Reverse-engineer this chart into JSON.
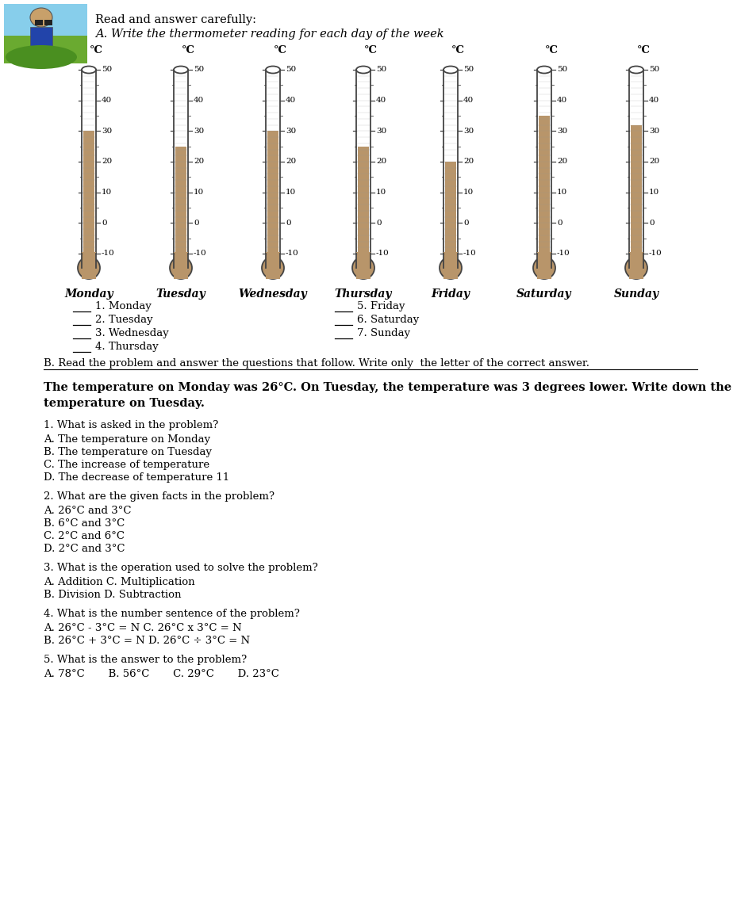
{
  "title_line1": "Read and answer carefully:",
  "title_line2": "A. Write the thermometer reading for each day of the week",
  "days": [
    "Monday",
    "Tuesday",
    "Wednesday",
    "Thursday",
    "Friday",
    "Saturday",
    "Sunday"
  ],
  "thermo_ticks": [
    -10,
    0,
    10,
    20,
    30,
    40,
    50
  ],
  "mercury_levels": [
    30,
    25,
    30,
    25,
    20,
    35,
    32
  ],
  "section_b_intro": "B. Read the problem and answer the questions that follow. Write only  the letter of the correct answer.",
  "problem_line1": "The temperature on Monday was 26°C. On Tuesday, the temperature was 3 degrees lower. Write down the",
  "problem_line2": "temperature on Tuesday.",
  "list_col1": [
    "1. Monday",
    "2. Tuesday",
    "3. Wednesday",
    "4. Thursday"
  ],
  "list_col2": [
    "5. Friday",
    "6. Saturday",
    "7. Sunday"
  ],
  "q1_text": "1. What is asked in the problem?",
  "q1_opts": [
    "A. The temperature on Monday",
    "B. The temperature on Tuesday",
    "C. The increase of temperature",
    "D. The decrease of temperature 11"
  ],
  "q2_text": "2. What are the given facts in the problem?",
  "q2_opts": [
    "A. 26°C and 3°C",
    "B. 6°C and 3°C",
    "C. 2°C and 6°C",
    "D. 2°C and 3°C"
  ],
  "q3_text": "3. What is the operation used to solve the problem?",
  "q3_opts": [
    "A. Addition C. Multiplication",
    "B. Division D. Subtraction"
  ],
  "q4_text": "4. What is the number sentence of the problem?",
  "q4_opts": [
    "A. 26°C - 3°C = N C. 26°C x 3°C = N",
    "B. 26°C + 3°C = N D. 26°C ÷ 3°C = N"
  ],
  "q5_text": "5. What is the answer to the problem?",
  "q5_opts": [
    "A. 78°C       B. 56°C       C. 29°C       D. 23°C"
  ],
  "bg_color": "#ffffff",
  "thermo_fill": "#b8956a",
  "thermo_border": "#444444",
  "text_color": "#000000",
  "val_min": -10,
  "val_max": 50
}
